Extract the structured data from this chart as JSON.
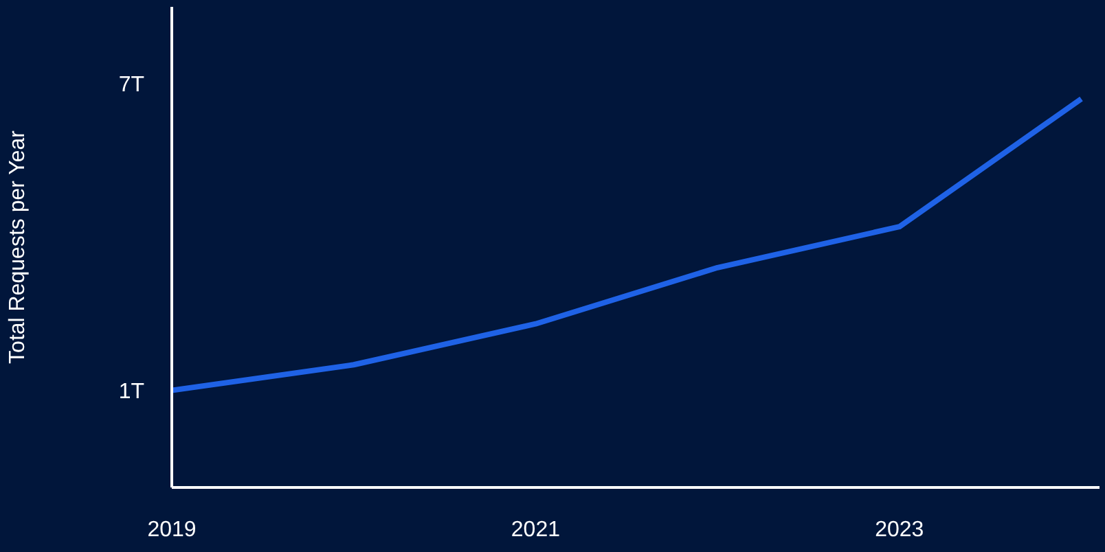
{
  "chart_data": {
    "type": "line",
    "ylabel": "Total Requests per Year",
    "x": [
      2019,
      2020,
      2021,
      2022,
      2023,
      2024
    ],
    "series": [
      {
        "color": "#1f62e6",
        "values": [
          1.0,
          1.5,
          2.3,
          3.4,
          4.2,
          6.7
        ]
      }
    ],
    "xlim": [
      2019,
      2024.1
    ],
    "xticks": [
      2019,
      2021,
      2023
    ],
    "ylim": [
      -0.9,
      8.5
    ],
    "yticks": [
      {
        "value": 1,
        "label": "1T"
      },
      {
        "value": 7,
        "label": "7T"
      }
    ],
    "grid": false,
    "legend": false,
    "marker": "none",
    "line_style": "solid"
  }
}
